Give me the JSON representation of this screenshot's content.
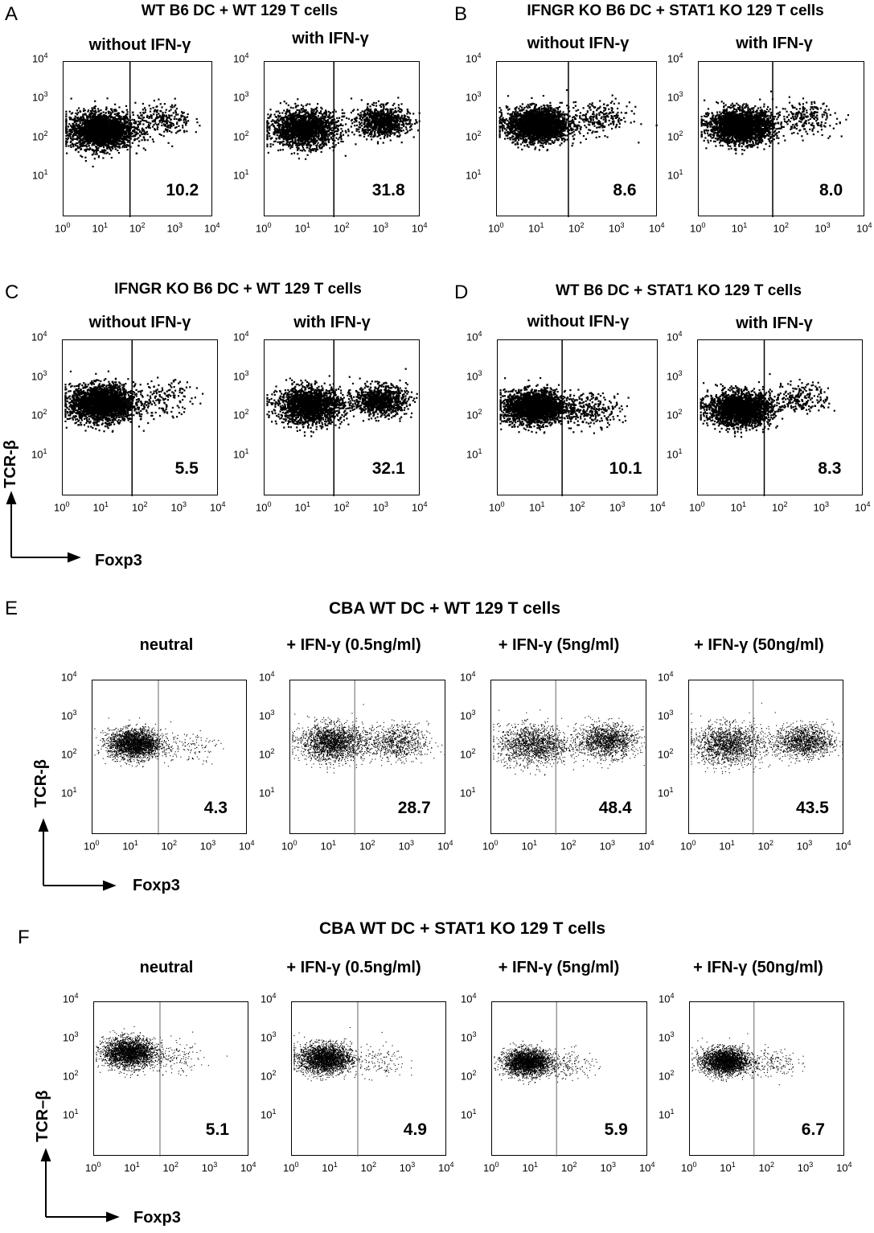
{
  "chart_data": [
    {
      "type": "scatter",
      "panel": "A",
      "title": "WT B6 DC + WT 129 T cells",
      "condition": "without IFN-γ",
      "percent_foxp3_pos": "10.2",
      "xscale": "log",
      "yscale": "log",
      "xlim": [
        1,
        10000
      ],
      "ylim": [
        1,
        10000
      ],
      "x_ticks": [
        "10",
        "10",
        "10",
        "10",
        "10"
      ],
      "x_tick_exponents": [
        "0",
        "1",
        "2",
        "3",
        "4"
      ],
      "y_ticks": [
        "10",
        "10",
        "10",
        "10"
      ],
      "y_tick_exponents": [
        "1",
        "2",
        "3",
        "4"
      ],
      "gate_x": 60,
      "populations": [
        {
          "x_center": 10,
          "y_center": 180,
          "n": 2600,
          "spread": 0.55
        },
        {
          "x_center": 450,
          "y_center": 320,
          "n": 260,
          "spread": 0.5
        }
      ]
    },
    {
      "type": "scatter",
      "panel": "A",
      "title": "WT B6 DC + WT 129 T cells",
      "condition": "with IFN-γ",
      "percent_foxp3_pos": "31.8",
      "xscale": "log",
      "yscale": "log",
      "xlim": [
        1,
        10000
      ],
      "ylim": [
        1,
        10000
      ],
      "x_ticks": [
        "10",
        "10",
        "10",
        "10",
        "10"
      ],
      "x_tick_exponents": [
        "0",
        "1",
        "2",
        "3",
        "4"
      ],
      "y_ticks": [
        "10",
        "10",
        "10",
        "10"
      ],
      "y_tick_exponents": [
        "1",
        "2",
        "3",
        "4"
      ],
      "gate_x": 60,
      "populations": [
        {
          "x_center": 10,
          "y_center": 200,
          "n": 1900,
          "spread": 0.55
        },
        {
          "x_center": 1000,
          "y_center": 300,
          "n": 950,
          "spread": 0.45
        }
      ]
    },
    {
      "type": "scatter",
      "panel": "B",
      "title": "IFNGR KO B6 DC + STAT1 KO 129 T cells",
      "condition": "without IFN-γ",
      "percent_foxp3_pos": "8.6",
      "xscale": "log",
      "yscale": "log",
      "xlim": [
        1,
        10000
      ],
      "ylim": [
        1,
        10000
      ],
      "x_ticks": [
        "10",
        "10",
        "10",
        "10",
        "10"
      ],
      "x_tick_exponents": [
        "0",
        "1",
        "2",
        "3",
        "4"
      ],
      "y_ticks": [
        "10",
        "10",
        "10",
        "10"
      ],
      "y_tick_exponents": [
        "1",
        "2",
        "3",
        "4"
      ],
      "gate_x": 60,
      "populations": [
        {
          "x_center": 10,
          "y_center": 250,
          "n": 2600,
          "spread": 0.5
        },
        {
          "x_center": 350,
          "y_center": 380,
          "n": 230,
          "spread": 0.5
        }
      ]
    },
    {
      "type": "scatter",
      "panel": "B",
      "title": "IFNGR KO B6 DC + STAT1 KO 129 T cells",
      "condition": "with IFN-γ",
      "percent_foxp3_pos": "8.0",
      "xscale": "log",
      "yscale": "log",
      "xlim": [
        1,
        10000
      ],
      "ylim": [
        1,
        10000
      ],
      "x_ticks": [
        "10",
        "10",
        "10",
        "10",
        "10"
      ],
      "x_tick_exponents": [
        "0",
        "1",
        "2",
        "3",
        "4"
      ],
      "y_ticks": [
        "10",
        "10",
        "10",
        "10"
      ],
      "y_tick_exponents": [
        "1",
        "2",
        "3",
        "4"
      ],
      "gate_x": 60,
      "populations": [
        {
          "x_center": 10,
          "y_center": 230,
          "n": 2600,
          "spread": 0.5
        },
        {
          "x_center": 350,
          "y_center": 380,
          "n": 220,
          "spread": 0.5
        }
      ]
    },
    {
      "type": "scatter",
      "panel": "C",
      "title": "IFNGR KO B6 DC + WT 129 T cells",
      "condition": "without IFN-γ",
      "percent_foxp3_pos": "5.5",
      "xscale": "log",
      "yscale": "log",
      "xlim": [
        1,
        10000
      ],
      "ylim": [
        1,
        10000
      ],
      "x_ticks": [
        "10",
        "10",
        "10",
        "10",
        "10"
      ],
      "x_tick_exponents": [
        "0",
        "1",
        "2",
        "3",
        "4"
      ],
      "y_ticks": [
        "10",
        "10",
        "10",
        "10"
      ],
      "y_tick_exponents": [
        "1",
        "2",
        "3",
        "4"
      ],
      "gate_x": 60,
      "populations": [
        {
          "x_center": 10,
          "y_center": 250,
          "n": 2600,
          "spread": 0.55
        },
        {
          "x_center": 400,
          "y_center": 350,
          "n": 150,
          "spread": 0.5
        }
      ]
    },
    {
      "type": "scatter",
      "panel": "C",
      "title": "IFNGR KO B6 DC + WT 129 T cells",
      "condition": "with IFN-γ",
      "percent_foxp3_pos": "32.1",
      "xscale": "log",
      "yscale": "log",
      "xlim": [
        1,
        10000
      ],
      "ylim": [
        1,
        10000
      ],
      "x_ticks": [
        "10",
        "10",
        "10",
        "10",
        "10"
      ],
      "x_tick_exponents": [
        "0",
        "1",
        "2",
        "3",
        "4"
      ],
      "y_ticks": [
        "10",
        "10",
        "10",
        "10"
      ],
      "y_tick_exponents": [
        "1",
        "2",
        "3",
        "4"
      ],
      "gate_x": 60,
      "populations": [
        {
          "x_center": 14,
          "y_center": 220,
          "n": 1900,
          "spread": 0.55
        },
        {
          "x_center": 900,
          "y_center": 300,
          "n": 950,
          "spread": 0.45
        }
      ]
    },
    {
      "type": "scatter",
      "panel": "D",
      "title": "WT B6 DC + STAT1 KO 129 T cells",
      "condition": "without IFN-γ",
      "percent_foxp3_pos": "10.1",
      "xscale": "log",
      "yscale": "log",
      "xlim": [
        1,
        10000
      ],
      "ylim": [
        1,
        10000
      ],
      "x_ticks": [
        "10",
        "10",
        "10",
        "10",
        "10"
      ],
      "x_tick_exponents": [
        "0",
        "1",
        "2",
        "3",
        "4"
      ],
      "y_ticks": [
        "10",
        "10",
        "10",
        "10"
      ],
      "y_tick_exponents": [
        "1",
        "2",
        "3",
        "4"
      ],
      "gate_x": 40,
      "populations": [
        {
          "x_center": 8,
          "y_center": 200,
          "n": 2400,
          "spread": 0.5
        },
        {
          "x_center": 200,
          "y_center": 180,
          "n": 270,
          "spread": 0.5
        }
      ]
    },
    {
      "type": "scatter",
      "panel": "D",
      "title": "WT B6 DC + STAT1 KO 129 T cells",
      "condition": "with IFN-γ",
      "percent_foxp3_pos": "8.3",
      "xscale": "log",
      "yscale": "log",
      "xlim": [
        1,
        10000
      ],
      "ylim": [
        1,
        10000
      ],
      "x_ticks": [
        "10",
        "10",
        "10",
        "10",
        "10"
      ],
      "x_tick_exponents": [
        "0",
        "1",
        "2",
        "3",
        "4"
      ],
      "y_ticks": [
        "10",
        "10",
        "10",
        "10"
      ],
      "y_tick_exponents": [
        "1",
        "2",
        "3",
        "4"
      ],
      "gate_x": 40,
      "populations": [
        {
          "x_center": 10,
          "y_center": 180,
          "n": 2400,
          "spread": 0.5
        },
        {
          "x_center": 300,
          "y_center": 350,
          "n": 220,
          "spread": 0.45
        }
      ]
    },
    {
      "type": "scatter",
      "panel": "E",
      "title": "CBA  WT DC +   WT 129 T cells",
      "condition": "neutral",
      "percent_foxp3_pos": "4.3",
      "xscale": "log",
      "yscale": "log",
      "xlim": [
        1,
        10000
      ],
      "ylim": [
        1,
        10000
      ],
      "x_ticks": [
        "10",
        "10",
        "10",
        "10",
        "10"
      ],
      "x_tick_exponents": [
        "0",
        "1",
        "2",
        "3",
        "4"
      ],
      "y_ticks": [
        "10",
        "10",
        "10",
        "10"
      ],
      "y_tick_exponents": [
        "1",
        "2",
        "3",
        "4"
      ],
      "gate_x": 50,
      "populations": [
        {
          "x_center": 12,
          "y_center": 230,
          "n": 2600,
          "spread": 0.45
        },
        {
          "x_center": 300,
          "y_center": 200,
          "n": 120,
          "spread": 0.5
        }
      ]
    },
    {
      "type": "scatter",
      "panel": "E",
      "title": "CBA  WT DC +   WT 129 T cells",
      "condition": "+ IFN-γ (0.5ng/ml)",
      "percent_foxp3_pos": "28.7",
      "xscale": "log",
      "yscale": "log",
      "xlim": [
        1,
        10000
      ],
      "ylim": [
        1,
        10000
      ],
      "x_ticks": [
        "10",
        "10",
        "10",
        "10",
        "10"
      ],
      "x_tick_exponents": [
        "0",
        "1",
        "2",
        "3",
        "4"
      ],
      "y_ticks": [
        "10",
        "10",
        "10",
        "10"
      ],
      "y_tick_exponents": [
        "1",
        "2",
        "3",
        "4"
      ],
      "gate_x": 45,
      "populations": [
        {
          "x_center": 12,
          "y_center": 250,
          "n": 2000,
          "spread": 0.55
        },
        {
          "x_center": 500,
          "y_center": 250,
          "n": 800,
          "spread": 0.55
        }
      ]
    },
    {
      "type": "scatter",
      "panel": "E",
      "title": "CBA  WT DC +   WT 129 T cells",
      "condition": "+ IFN-γ (5ng/ml)",
      "percent_foxp3_pos": "48.4",
      "xscale": "log",
      "yscale": "log",
      "xlim": [
        1,
        10000
      ],
      "ylim": [
        1,
        10000
      ],
      "x_ticks": [
        "10",
        "10",
        "10",
        "10",
        "10"
      ],
      "x_tick_exponents": [
        "0",
        "1",
        "2",
        "3",
        "4"
      ],
      "y_ticks": [
        "10",
        "10",
        "10",
        "10"
      ],
      "y_tick_exponents": [
        "1",
        "2",
        "3",
        "4"
      ],
      "gate_x": 45,
      "populations": [
        {
          "x_center": 12,
          "y_center": 220,
          "n": 1500,
          "spread": 0.6
        },
        {
          "x_center": 900,
          "y_center": 280,
          "n": 1400,
          "spread": 0.5
        }
      ]
    },
    {
      "type": "scatter",
      "panel": "E",
      "title": "CBA  WT DC +   WT 129 T cells",
      "condition": "+ IFN-γ (50ng/ml)",
      "percent_foxp3_pos": "43.5",
      "xscale": "log",
      "yscale": "log",
      "xlim": [
        1,
        10000
      ],
      "ylim": [
        1,
        10000
      ],
      "x_ticks": [
        "10",
        "10",
        "10",
        "10",
        "10"
      ],
      "x_tick_exponents": [
        "0",
        "1",
        "2",
        "3",
        "4"
      ],
      "y_ticks": [
        "10",
        "10",
        "10",
        "10"
      ],
      "y_tick_exponents": [
        "1",
        "2",
        "3",
        "4"
      ],
      "gate_x": 45,
      "populations": [
        {
          "x_center": 10,
          "y_center": 220,
          "n": 1600,
          "spread": 0.6
        },
        {
          "x_center": 900,
          "y_center": 270,
          "n": 1250,
          "spread": 0.5
        }
      ]
    },
    {
      "type": "scatter",
      "panel": "F",
      "title": "CBA  WT DC  + STAT1 KO 129 T cells",
      "condition": "neutral",
      "percent_foxp3_pos": "5.1",
      "xscale": "log",
      "yscale": "log",
      "xlim": [
        1,
        10000
      ],
      "ylim": [
        1,
        10000
      ],
      "x_ticks": [
        "10",
        "10",
        "10",
        "10",
        "10"
      ],
      "x_tick_exponents": [
        "0",
        "1",
        "2",
        "3",
        "4"
      ],
      "y_ticks": [
        "10",
        "10",
        "10",
        "10"
      ],
      "y_tick_exponents": [
        "1",
        "2",
        "3",
        "4"
      ],
      "gate_x": 50,
      "populations": [
        {
          "x_center": 8,
          "y_center": 500,
          "n": 2600,
          "spread": 0.45
        },
        {
          "x_center": 120,
          "y_center": 350,
          "n": 140,
          "spread": 0.5
        }
      ]
    },
    {
      "type": "scatter",
      "panel": "F",
      "title": "CBA  WT DC  + STAT1 KO 129 T cells",
      "condition": "+ IFN-γ (0.5ng/ml)",
      "percent_foxp3_pos": "4.9",
      "xscale": "log",
      "yscale": "log",
      "xlim": [
        1,
        10000
      ],
      "ylim": [
        1,
        10000
      ],
      "x_ticks": [
        "10",
        "10",
        "10",
        "10",
        "10"
      ],
      "x_tick_exponents": [
        "0",
        "1",
        "2",
        "3",
        "4"
      ],
      "y_ticks": [
        "10",
        "10",
        "10",
        "10"
      ],
      "y_tick_exponents": [
        "1",
        "2",
        "3",
        "4"
      ],
      "gate_x": 50,
      "populations": [
        {
          "x_center": 7,
          "y_center": 350,
          "n": 2600,
          "spread": 0.45
        },
        {
          "x_center": 150,
          "y_center": 300,
          "n": 130,
          "spread": 0.5
        }
      ]
    },
    {
      "type": "scatter",
      "panel": "F",
      "title": "CBA  WT DC  + STAT1 KO 129 T cells",
      "condition": "+ IFN-γ (5ng/ml)",
      "percent_foxp3_pos": "5.9",
      "xscale": "log",
      "yscale": "log",
      "xlim": [
        1,
        10000
      ],
      "ylim": [
        1,
        10000
      ],
      "x_ticks": [
        "10",
        "10",
        "10",
        "10",
        "10"
      ],
      "x_tick_exponents": [
        "0",
        "1",
        "2",
        "3",
        "4"
      ],
      "y_ticks": [
        "10",
        "10",
        "10",
        "10"
      ],
      "y_tick_exponents": [
        "1",
        "2",
        "3",
        "4"
      ],
      "gate_x": 45,
      "populations": [
        {
          "x_center": 8,
          "y_center": 280,
          "n": 2600,
          "spread": 0.4
        },
        {
          "x_center": 100,
          "y_center": 250,
          "n": 160,
          "spread": 0.45
        }
      ]
    },
    {
      "type": "scatter",
      "panel": "F",
      "title": "CBA  WT DC  + STAT1 KO 129 T cells",
      "condition": "+ IFN-γ (50ng/ml)",
      "percent_foxp3_pos": "6.7",
      "xscale": "log",
      "yscale": "log",
      "xlim": [
        1,
        10000
      ],
      "ylim": [
        1,
        10000
      ],
      "x_ticks": [
        "10",
        "10",
        "10",
        "10",
        "10"
      ],
      "x_tick_exponents": [
        "0",
        "1",
        "2",
        "3",
        "4"
      ],
      "y_ticks": [
        "10",
        "10",
        "10",
        "10"
      ],
      "y_tick_exponents": [
        "1",
        "2",
        "3",
        "4"
      ],
      "gate_x": 45,
      "populations": [
        {
          "x_center": 8,
          "y_center": 300,
          "n": 2600,
          "spread": 0.4
        },
        {
          "x_center": 120,
          "y_center": 280,
          "n": 180,
          "spread": 0.45
        }
      ]
    }
  ],
  "panels": {
    "A": {
      "letter": "A",
      "title": "WT B6 DC + WT 129 T cells",
      "cond1": "without IFN-γ",
      "cond2": "with IFN-γ"
    },
    "B": {
      "letter": "B",
      "title": "IFNGR KO B6 DC + STAT1 KO 129 T cells",
      "cond1": "without IFN-γ",
      "cond2": "with IFN-γ"
    },
    "C": {
      "letter": "C",
      "title": "IFNGR KO B6 DC + WT 129 T cells",
      "cond1": "without IFN-γ",
      "cond2": "with IFN-γ"
    },
    "D": {
      "letter": "D",
      "title": "WT B6 DC + STAT1 KO 129 T cells",
      "cond1": "without IFN-γ",
      "cond2": "with IFN-γ"
    },
    "E": {
      "letter": "E",
      "title": "CBA  WT DC +   WT 129 T cells",
      "cond1": "neutral",
      "cond2": "+ IFN-γ (0.5ng/ml)",
      "cond3": "+ IFN-γ (5ng/ml)",
      "cond4": "+ IFN-γ (50ng/ml)"
    },
    "F": {
      "letter": "F",
      "title": "CBA  WT DC  + STAT1 KO 129 T cells",
      "cond1": "neutral",
      "cond2": "+ IFN-γ (0.5ng/ml)",
      "cond3": "+ IFN-γ (5ng/ml)",
      "cond4": "+ IFN-γ (50ng/ml)"
    }
  },
  "axes": {
    "y_label_c": "TCR-β",
    "x_label_c": "Foxp3",
    "y_label_e": "TCR-β",
    "x_label_e": "Foxp3",
    "y_label_f": "TCR–β",
    "x_label_f": "Foxp3"
  }
}
